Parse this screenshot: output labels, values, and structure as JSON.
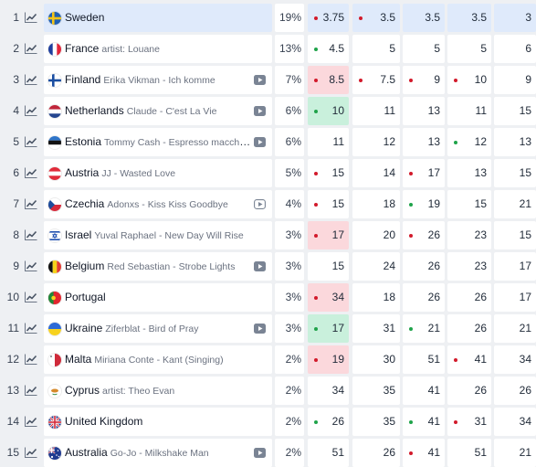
{
  "colors": {
    "dot_red": "#d21a2b",
    "dot_green": "#1fa34a",
    "highlight_row": "#dfeafb",
    "highlight_red": "#fbd8dc",
    "highlight_green": "#c9f0dc"
  },
  "rows": [
    {
      "rank": "1",
      "country": "Sweden",
      "song": "",
      "pct": "19%",
      "flag": "sweden",
      "video": false,
      "highlight": true,
      "odds": [
        {
          "v": "3.75",
          "dot": "red",
          "hl": ""
        },
        {
          "v": "3.5",
          "dot": "red",
          "hl": ""
        },
        {
          "v": "3.5",
          "dot": "",
          "hl": ""
        },
        {
          "v": "3.5",
          "dot": "",
          "hl": ""
        },
        {
          "v": "3",
          "dot": "",
          "hl": ""
        }
      ]
    },
    {
      "rank": "2",
      "country": "France",
      "song": "artist: Louane",
      "pct": "13%",
      "flag": "france",
      "video": false,
      "odds": [
        {
          "v": "4.5",
          "dot": "green",
          "hl": ""
        },
        {
          "v": "5",
          "dot": "",
          "hl": ""
        },
        {
          "v": "5",
          "dot": "",
          "hl": ""
        },
        {
          "v": "5",
          "dot": "",
          "hl": ""
        },
        {
          "v": "6",
          "dot": "",
          "hl": ""
        }
      ]
    },
    {
      "rank": "3",
      "country": "Finland",
      "song": "Erika Vikman - Ich komme",
      "pct": "7%",
      "flag": "finland",
      "video": true,
      "odds": [
        {
          "v": "8.5",
          "dot": "red",
          "hl": "red"
        },
        {
          "v": "7.5",
          "dot": "red",
          "hl": ""
        },
        {
          "v": "9",
          "dot": "red",
          "hl": ""
        },
        {
          "v": "10",
          "dot": "red",
          "hl": ""
        },
        {
          "v": "9",
          "dot": "",
          "hl": ""
        }
      ]
    },
    {
      "rank": "4",
      "country": "Netherlands",
      "song": "Claude - C'est La Vie",
      "pct": "6%",
      "flag": "netherlands",
      "video": true,
      "odds": [
        {
          "v": "10",
          "dot": "green",
          "hl": "green"
        },
        {
          "v": "11",
          "dot": "",
          "hl": ""
        },
        {
          "v": "13",
          "dot": "",
          "hl": ""
        },
        {
          "v": "11",
          "dot": "",
          "hl": ""
        },
        {
          "v": "15",
          "dot": "",
          "hl": ""
        }
      ]
    },
    {
      "rank": "5",
      "country": "Estonia",
      "song": "Tommy Cash - Espresso macchiato",
      "pct": "6%",
      "flag": "estonia",
      "video": true,
      "odds": [
        {
          "v": "11",
          "dot": "",
          "hl": ""
        },
        {
          "v": "12",
          "dot": "",
          "hl": ""
        },
        {
          "v": "13",
          "dot": "",
          "hl": ""
        },
        {
          "v": "12",
          "dot": "green",
          "hl": ""
        },
        {
          "v": "13",
          "dot": "",
          "hl": ""
        }
      ]
    },
    {
      "rank": "6",
      "country": "Austria",
      "song": "JJ - Wasted Love",
      "pct": "5%",
      "flag": "austria",
      "video": false,
      "odds": [
        {
          "v": "15",
          "dot": "red",
          "hl": ""
        },
        {
          "v": "14",
          "dot": "",
          "hl": ""
        },
        {
          "v": "17",
          "dot": "red",
          "hl": ""
        },
        {
          "v": "13",
          "dot": "",
          "hl": ""
        },
        {
          "v": "15",
          "dot": "",
          "hl": ""
        }
      ]
    },
    {
      "rank": "7",
      "country": "Czechia",
      "song": "Adonxs - Kiss Kiss Goodbye",
      "pct": "4%",
      "flag": "czechia",
      "video": true,
      "odds": [
        {
          "v": "15",
          "dot": "red",
          "hl": ""
        },
        {
          "v": "18",
          "dot": "",
          "hl": ""
        },
        {
          "v": "19",
          "dot": "green",
          "hl": ""
        },
        {
          "v": "15",
          "dot": "",
          "hl": ""
        },
        {
          "v": "21",
          "dot": "",
          "hl": ""
        }
      ]
    },
    {
      "rank": "8",
      "country": "Israel",
      "song": "Yuval Raphael - New Day Will Rise",
      "pct": "3%",
      "flag": "israel",
      "video": false,
      "odds": [
        {
          "v": "17",
          "dot": "red",
          "hl": "red"
        },
        {
          "v": "20",
          "dot": "",
          "hl": ""
        },
        {
          "v": "26",
          "dot": "red",
          "hl": ""
        },
        {
          "v": "23",
          "dot": "",
          "hl": ""
        },
        {
          "v": "15",
          "dot": "",
          "hl": ""
        }
      ]
    },
    {
      "rank": "9",
      "country": "Belgium",
      "song": "Red Sebastian - Strobe Lights",
      "pct": "3%",
      "flag": "belgium",
      "video": true,
      "odds": [
        {
          "v": "15",
          "dot": "",
          "hl": ""
        },
        {
          "v": "24",
          "dot": "",
          "hl": ""
        },
        {
          "v": "26",
          "dot": "",
          "hl": ""
        },
        {
          "v": "23",
          "dot": "",
          "hl": ""
        },
        {
          "v": "17",
          "dot": "",
          "hl": ""
        }
      ]
    },
    {
      "rank": "10",
      "country": "Portugal",
      "song": "",
      "pct": "3%",
      "flag": "portugal",
      "video": false,
      "odds": [
        {
          "v": "34",
          "dot": "red",
          "hl": "red"
        },
        {
          "v": "18",
          "dot": "",
          "hl": ""
        },
        {
          "v": "26",
          "dot": "",
          "hl": ""
        },
        {
          "v": "26",
          "dot": "",
          "hl": ""
        },
        {
          "v": "17",
          "dot": "",
          "hl": ""
        }
      ]
    },
    {
      "rank": "11",
      "country": "Ukraine",
      "song": "Ziferblat - Bird of Pray",
      "pct": "3%",
      "flag": "ukraine",
      "video": true,
      "odds": [
        {
          "v": "17",
          "dot": "green",
          "hl": "green"
        },
        {
          "v": "31",
          "dot": "",
          "hl": ""
        },
        {
          "v": "21",
          "dot": "green",
          "hl": ""
        },
        {
          "v": "26",
          "dot": "",
          "hl": ""
        },
        {
          "v": "21",
          "dot": "",
          "hl": ""
        }
      ]
    },
    {
      "rank": "12",
      "country": "Malta",
      "song": "Miriana Conte - Kant (Singing)",
      "pct": "2%",
      "flag": "malta",
      "video": false,
      "odds": [
        {
          "v": "19",
          "dot": "red",
          "hl": "red"
        },
        {
          "v": "30",
          "dot": "",
          "hl": ""
        },
        {
          "v": "51",
          "dot": "",
          "hl": ""
        },
        {
          "v": "41",
          "dot": "red",
          "hl": ""
        },
        {
          "v": "34",
          "dot": "",
          "hl": ""
        }
      ]
    },
    {
      "rank": "13",
      "country": "Cyprus",
      "song": "artist: Theo Evan",
      "pct": "2%",
      "flag": "cyprus",
      "video": false,
      "odds": [
        {
          "v": "34",
          "dot": "",
          "hl": ""
        },
        {
          "v": "35",
          "dot": "",
          "hl": ""
        },
        {
          "v": "41",
          "dot": "",
          "hl": ""
        },
        {
          "v": "26",
          "dot": "",
          "hl": ""
        },
        {
          "v": "26",
          "dot": "",
          "hl": ""
        }
      ]
    },
    {
      "rank": "14",
      "country": "United Kingdom",
      "song": "",
      "pct": "2%",
      "flag": "uk",
      "video": false,
      "odds": [
        {
          "v": "26",
          "dot": "green",
          "hl": ""
        },
        {
          "v": "35",
          "dot": "",
          "hl": ""
        },
        {
          "v": "41",
          "dot": "green",
          "hl": ""
        },
        {
          "v": "31",
          "dot": "red",
          "hl": ""
        },
        {
          "v": "34",
          "dot": "",
          "hl": ""
        }
      ]
    },
    {
      "rank": "15",
      "country": "Australia",
      "song": "Go-Jo - Milkshake Man",
      "pct": "2%",
      "flag": "australia",
      "video": true,
      "odds": [
        {
          "v": "51",
          "dot": "",
          "hl": ""
        },
        {
          "v": "26",
          "dot": "",
          "hl": ""
        },
        {
          "v": "41",
          "dot": "red",
          "hl": ""
        },
        {
          "v": "51",
          "dot": "",
          "hl": ""
        },
        {
          "v": "21",
          "dot": "",
          "hl": ""
        }
      ]
    }
  ]
}
